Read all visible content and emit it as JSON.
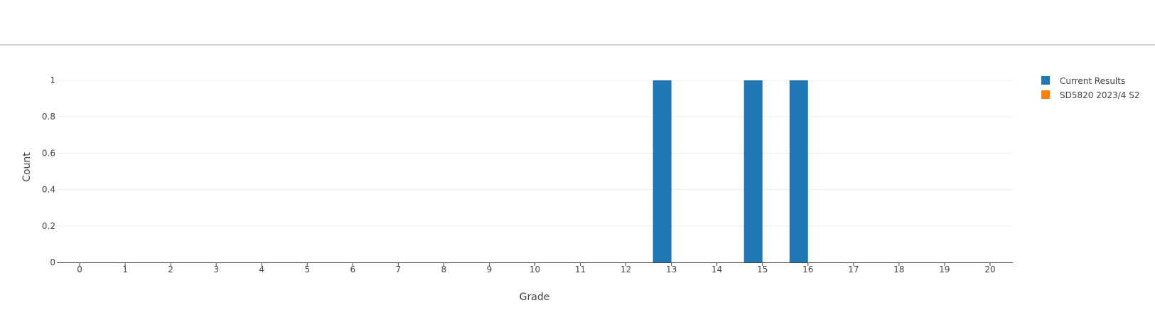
{
  "chart_data": {
    "type": "bar",
    "xlabel": "Grade",
    "ylabel": "Count",
    "categories": [
      "0",
      "1",
      "2",
      "3",
      "4",
      "5",
      "6",
      "7",
      "8",
      "9",
      "10",
      "11",
      "12",
      "13",
      "14",
      "15",
      "16",
      "17",
      "18",
      "19",
      "20"
    ],
    "ylim": [
      0,
      1
    ],
    "yticks": [
      "0",
      "0.2",
      "0.4",
      "0.6",
      "0.8",
      "1"
    ],
    "grid": true,
    "legend_position": "top-right",
    "series": [
      {
        "name": "Current Results",
        "color": "#1f77b4",
        "values": [
          0,
          0,
          0,
          0,
          0,
          0,
          0,
          0,
          0,
          0,
          0,
          0,
          0,
          1,
          0,
          1,
          1,
          0,
          0,
          0,
          0
        ]
      },
      {
        "name": "SD5820 2023/4 S2",
        "color": "#ff7f0e",
        "values": [
          0,
          0,
          0,
          0,
          0,
          0,
          0,
          0,
          0,
          0,
          0,
          0,
          0,
          0,
          0,
          0,
          0,
          0,
          0,
          0,
          0
        ]
      }
    ]
  }
}
